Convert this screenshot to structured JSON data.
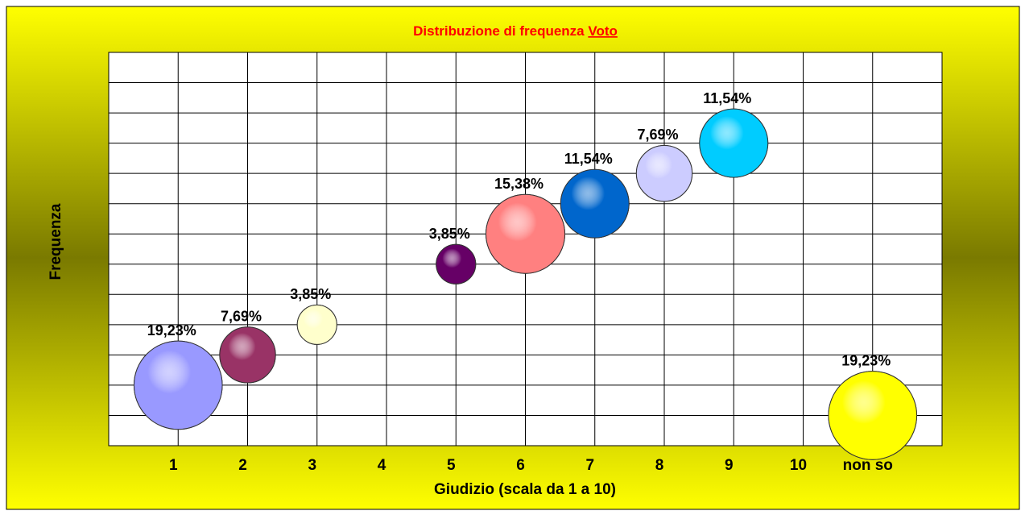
{
  "chart_data": {
    "type": "bubble",
    "title": "Distribuzione di frequenza",
    "title_emphasis": "Voto",
    "x_label": "Giudizio (scala da 1 a 10)",
    "y_label": "Frequenza",
    "categories": [
      "1",
      "2",
      "3",
      "4",
      "5",
      "6",
      "7",
      "8",
      "9",
      "10",
      "non so"
    ],
    "xlim": [
      0,
      12
    ],
    "ylim": [
      0,
      13
    ],
    "y": [
      2,
      3,
      4,
      null,
      6,
      7,
      8,
      9,
      10,
      null,
      1
    ],
    "sizes": [
      19.23,
      7.69,
      3.85,
      null,
      3.85,
      15.38,
      11.54,
      7.69,
      11.54,
      null,
      19.23
    ],
    "value_labels": [
      "19,23%",
      "7,69%",
      "3,85%",
      null,
      "3,85%",
      "15,38%",
      "11,54%",
      "7,69%",
      "11,54%",
      null,
      "19,23%"
    ],
    "colors": [
      "#9999ff",
      "#993366",
      "#ffffcc",
      null,
      "#660066",
      "#ff8080",
      "#0066cc",
      "#ccccff",
      "#00ccff",
      null,
      "#ffff00"
    ],
    "grid": true
  }
}
